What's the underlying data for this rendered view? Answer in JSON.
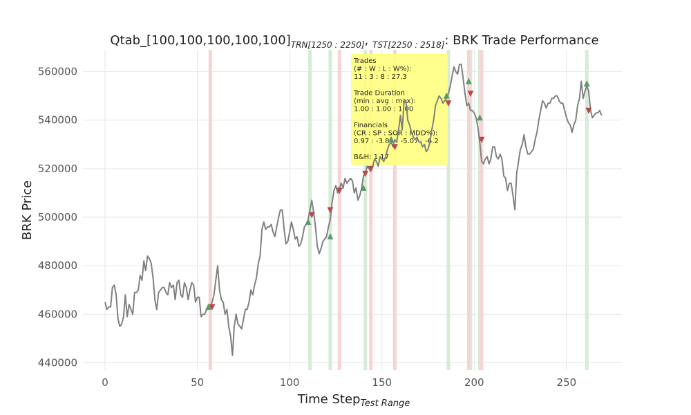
{
  "chart_data": {
    "type": "line",
    "title_main": "Qtab_[100,100,100,100,100]",
    "title_sub1": "TRN[1250 : 2250]",
    "title_mid": ", ",
    "title_sub2": "TST[2250 : 2518]",
    "title_tail": ": BRK Trade Performance",
    "xlabel_main": "Time Step",
    "xlabel_sub": "Test Range",
    "ylabel": "BRK Price",
    "xlim": [
      -12,
      280
    ],
    "ylim": [
      437000,
      569000
    ],
    "x_ticks": [
      0,
      50,
      100,
      150,
      200,
      250
    ],
    "x_tick_labels": [
      "0",
      "50",
      "100",
      "150",
      "200",
      "250"
    ],
    "y_ticks": [
      440000,
      460000,
      480000,
      500000,
      520000,
      540000,
      560000
    ],
    "y_tick_labels": [
      "440000",
      "460000",
      "480000",
      "500000",
      "520000",
      "540000",
      "560000"
    ],
    "grid": true,
    "line_color": "#808080",
    "buy_band_color": "#d6ecd6",
    "sell_band_color": "#f6d4d6",
    "buy_marker_color": "#5b9a6b",
    "sell_marker_color": "#b54a4a",
    "series": [
      {
        "values": [
          465000,
          462000,
          463000,
          463000,
          471000,
          472000,
          468000,
          458000,
          455000,
          456000,
          459000,
          468000,
          459000,
          464000,
          462000,
          460000,
          469000,
          469000,
          470000,
          476000,
          474000,
          482000,
          478000,
          484000,
          483000,
          481000,
          475000,
          466000,
          462000,
          469000,
          470000,
          471000,
          471000,
          469000,
          468000,
          473000,
          471000,
          472000,
          466000,
          473000,
          474000,
          468000,
          467000,
          473000,
          471000,
          466000,
          470000,
          473000,
          472000,
          465000,
          467000,
          467000,
          459000,
          460000,
          460000,
          462000,
          462000,
          463000,
          465000,
          468000,
          474000,
          480000,
          470000,
          466000,
          465000,
          460000,
          462000,
          455000,
          451000,
          443000,
          455000,
          460000,
          456000,
          455000,
          454000,
          458000,
          462000,
          462000,
          465000,
          470000,
          468000,
          472000,
          475000,
          481000,
          484000,
          495000,
          498000,
          495000,
          496000,
          496000,
          497000,
          494000,
          492000,
          496000,
          500000,
          503000,
          503000,
          495000,
          489000,
          490000,
          494000,
          498000,
          495000,
          491000,
          492000,
          488000,
          489000,
          492000,
          496000,
          497000,
          499000,
          503000,
          507000,
          502000,
          496000,
          488000,
          485000,
          487000,
          490000,
          491000,
          492000,
          496000,
          499000,
          506000,
          511000,
          513000,
          510000,
          512000,
          514000,
          512000,
          516000,
          514000,
          515000,
          516000,
          515000,
          510000,
          512000,
          507000,
          509000,
          512000,
          517000,
          518000,
          521000,
          520000,
          519000,
          521000,
          524000,
          523000,
          521000,
          525000,
          524000,
          523000,
          525000,
          528000,
          530000,
          531000,
          529000,
          532000,
          531000,
          536000,
          542000,
          536000,
          548000,
          548000,
          540000,
          538000,
          535000,
          533000,
          532000,
          533000,
          531000,
          531000,
          529000,
          530000,
          527000,
          528000,
          531000,
          536000,
          540000,
          546000,
          548000,
          550000,
          549000,
          547000,
          548000,
          549000,
          551000,
          554000,
          558000,
          562000,
          560000,
          559000,
          563000,
          563000,
          557000,
          551000,
          546000,
          547000,
          544000,
          544000,
          543000,
          541000,
          537000,
          531000,
          523000,
          522000,
          524000,
          525000,
          522000,
          524000,
          529000,
          529000,
          525000,
          524000,
          526000,
          524000,
          517000,
          516000,
          511000,
          514000,
          514000,
          509000,
          503000,
          518000,
          523000,
          528000,
          530000,
          534000,
          529000,
          526000,
          526000,
          527000,
          528000,
          532000,
          535000,
          540000,
          544000,
          548000,
          547000,
          545000,
          547000,
          547000,
          549000,
          549000,
          550000,
          550000,
          548000,
          547000,
          547000,
          544000,
          541000,
          539000,
          538000,
          535000,
          538000,
          540000,
          546000,
          549000,
          556000,
          549000,
          552000,
          554000,
          552000,
          544000,
          541000,
          542000,
          543000,
          543000,
          544000,
          542000
        ]
      }
    ],
    "buy_bands": [
      111,
      122,
      141,
      186,
      198,
      203,
      261
    ],
    "sell_bands": [
      57,
      127,
      144,
      157,
      197,
      204
    ],
    "buy_markers": [
      {
        "x": 56,
        "y": 463000
      },
      {
        "x": 110,
        "y": 498000
      },
      {
        "x": 122,
        "y": 492000
      },
      {
        "x": 140,
        "y": 512000
      },
      {
        "x": 155,
        "y": 532000
      },
      {
        "x": 185,
        "y": 550000
      },
      {
        "x": 197,
        "y": 556000
      },
      {
        "x": 203,
        "y": 541000
      },
      {
        "x": 261,
        "y": 555000
      }
    ],
    "sell_markers": [
      {
        "x": 58,
        "y": 463000
      },
      {
        "x": 112,
        "y": 501000
      },
      {
        "x": 122,
        "y": 503000
      },
      {
        "x": 127,
        "y": 511000
      },
      {
        "x": 141,
        "y": 518000
      },
      {
        "x": 144,
        "y": 520000
      },
      {
        "x": 157,
        "y": 529000
      },
      {
        "x": 186,
        "y": 547000
      },
      {
        "x": 198,
        "y": 551000
      },
      {
        "x": 204,
        "y": 532000
      },
      {
        "x": 262,
        "y": 544000
      }
    ],
    "info_box": {
      "color": "#ffff80",
      "lines": [
        "Trades",
        "(# : W : L : W%):",
        "11 : 3 : 8 : 27.3",
        "",
        "Trade Duration",
        "(min : avg : max):",
        "1.00 : 1.00 : 1.00",
        "",
        "Financials",
        "(CR : SP : SOR : MDD%):",
        "0.97 : -3.84 : -5.07 : -6.2",
        "",
        "B&H: 1.17"
      ]
    }
  }
}
